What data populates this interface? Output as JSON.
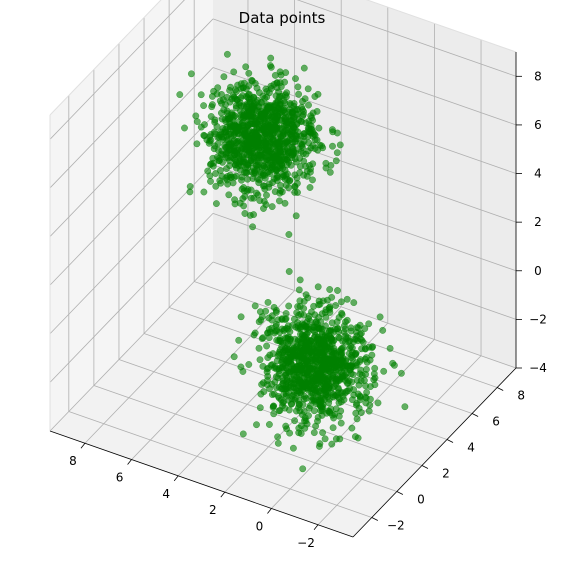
{
  "chart_data": {
    "type": "scatter3d",
    "title": "Data points",
    "xlabel": "",
    "ylabel": "",
    "zlabel": "",
    "xlim": [
      -3.5,
      9.5
    ],
    "ylim": [
      -3.5,
      9.5
    ],
    "zlim": [
      -4,
      9
    ],
    "x_ticks": [
      -2,
      0,
      2,
      4,
      6,
      8
    ],
    "y_ticks": [
      -2,
      0,
      2,
      4,
      6,
      8
    ],
    "z_ticks": [
      -4,
      -2,
      0,
      2,
      4,
      6,
      8
    ],
    "grid": true,
    "marker_color": "#008000",
    "marker_alpha": 0.6,
    "clusters": [
      {
        "center": [
          0,
          0,
          0
        ],
        "std": 1.0,
        "approx_points": 1000
      },
      {
        "center": [
          5,
          5,
          5
        ],
        "std": 1.0,
        "approx_points": 1000
      }
    ]
  }
}
